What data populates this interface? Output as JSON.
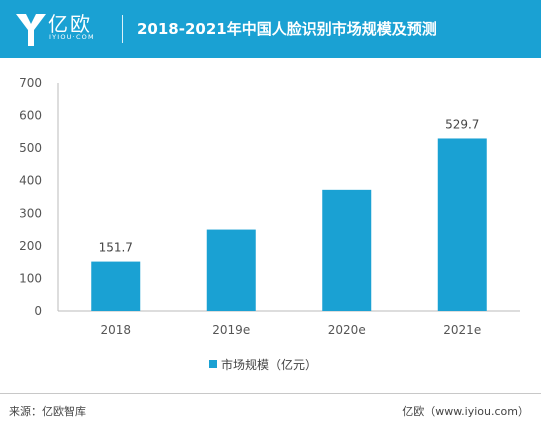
{
  "header": {
    "logo_name": "亿欧",
    "logo_domain": "IYIOU·COM",
    "title": "2018-2021年中国人脸识别市场规模及预测",
    "colors": {
      "brand": "#1aa1d3",
      "bar": "#1aa1d3"
    },
    "logo_icon": "yiou-logo-icon"
  },
  "chart_data": {
    "type": "bar",
    "categories": [
      "2018",
      "2019e",
      "2020e",
      "2021e"
    ],
    "series": [
      {
        "name": "市场规模（亿元）",
        "values": [
          151.7,
          250,
          372,
          529.7
        ]
      }
    ],
    "data_labels": [
      "151.7",
      "",
      "",
      "529.7"
    ],
    "yticks": [
      "0",
      "100",
      "200",
      "300",
      "400",
      "500",
      "600",
      "700"
    ],
    "ylim": [
      0,
      700
    ],
    "title": "2018-2021年中国人脸识别市场规模及预测",
    "xlabel": "",
    "ylabel": "",
    "grid": false,
    "legend_position": "bottom-center"
  },
  "footer": {
    "source": "来源：亿欧智库",
    "site": "亿欧（www.iyiou.com）"
  }
}
